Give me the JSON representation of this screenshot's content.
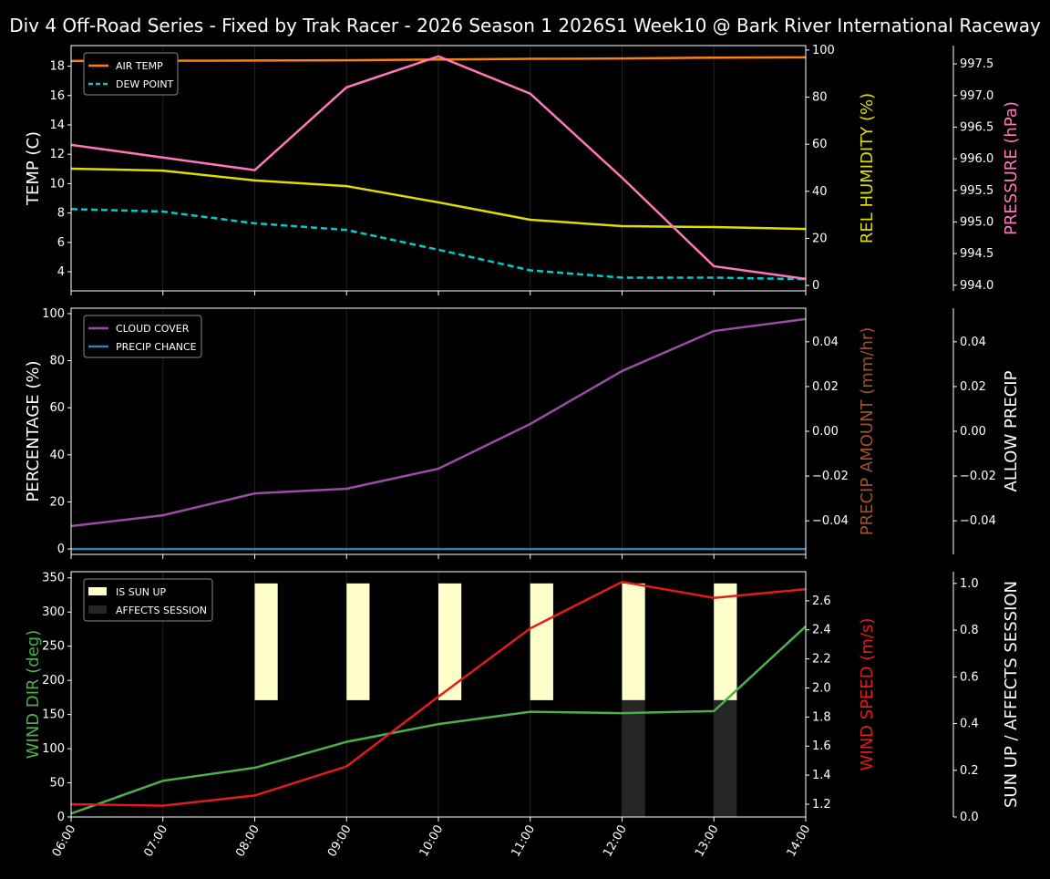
{
  "title": "Div 4 Off-Road Series - Fixed by Trak Racer - 2026 Season 1 2026S1 Week10 @ Bark River International Raceway",
  "chart_data": [
    {
      "type": "line",
      "x": [
        "06:00",
        "07:00",
        "08:00",
        "09:00",
        "10:00",
        "11:00",
        "12:00",
        "13:00",
        "14:00"
      ],
      "legend_placement": "upper-left",
      "axes": [
        {
          "label": "TEMP (C)",
          "side": "left",
          "ylim": [
            2.7,
            19.4
          ],
          "ticks": [
            4,
            6,
            8,
            10,
            12,
            14,
            16,
            18
          ],
          "color": "#ffffff"
        },
        {
          "label": "REL HUMIDITY (%)",
          "side": "right",
          "ylim": [
            -2.3,
            101.9
          ],
          "ticks": [
            0,
            20,
            40,
            60,
            80,
            100
          ],
          "color": "#dddd00"
        },
        {
          "label": "PRESSURE (hPa)",
          "side": "far-right",
          "ylim": [
            993.91,
            997.79
          ],
          "ticks": [
            "994.0",
            "994.5",
            "995.0",
            "995.5",
            "996.0",
            "996.5",
            "997.0",
            "997.5"
          ],
          "color": "#ff77bb"
        }
      ],
      "series": [
        {
          "name": "AIR TEMP",
          "axis": 0,
          "color": "#ff7f0e",
          "dash": false,
          "values": [
            18.35,
            18.37,
            18.38,
            18.4,
            18.45,
            18.5,
            18.52,
            18.58,
            18.6
          ]
        },
        {
          "name": "DEW POINT",
          "axis": 0,
          "color": "#00cccc",
          "dash": true,
          "values": [
            8.27,
            8.1,
            7.3,
            6.85,
            5.5,
            4.1,
            3.6,
            3.6,
            3.5
          ]
        },
        {
          "axis": 1,
          "color": "#dddd00",
          "dash": false,
          "values": [
            49.6,
            48.8,
            44.6,
            42.2,
            35.3,
            27.9,
            25.2,
            24.8,
            24.0
          ]
        },
        {
          "axis": 2,
          "color": "#ff77bb",
          "dash": false,
          "values": [
            996.22,
            996.02,
            995.82,
            997.13,
            997.62,
            997.03,
            995.7,
            994.3,
            994.1
          ]
        }
      ]
    },
    {
      "type": "line",
      "x": [
        "06:00",
        "07:00",
        "08:00",
        "09:00",
        "10:00",
        "11:00",
        "12:00",
        "13:00",
        "14:00"
      ],
      "legend_placement": "upper-left",
      "axes": [
        {
          "label": "PERCENTAGE (%)",
          "side": "left",
          "ylim": [
            -2.3,
            102.3
          ],
          "ticks": [
            0,
            20,
            40,
            60,
            80,
            100
          ],
          "color": "#ffffff"
        },
        {
          "label": "PRECIP AMOUNT (mm/hr)",
          "side": "right",
          "ylim": [
            -0.055,
            0.055
          ],
          "ticks": [
            "−0.04",
            "−0.02",
            "0.00",
            "0.02",
            "0.04"
          ],
          "color": "#a0522d"
        },
        {
          "label": "ALLOW PRECIP",
          "side": "far-right",
          "ylim": [
            -0.055,
            0.055
          ],
          "ticks": [
            "−0.04",
            "−0.02",
            "0.00",
            "0.02",
            "0.04"
          ],
          "color": "#ffffff"
        }
      ],
      "series": [
        {
          "name": "CLOUD COVER",
          "axis": 0,
          "color": "#984ea3",
          "dash": false,
          "values": [
            9.7,
            14.3,
            23.6,
            25.6,
            34.1,
            53.1,
            75.6,
            92.6,
            97.7
          ]
        },
        {
          "name": "PRECIP CHANCE",
          "axis": 0,
          "color": "#377eb8",
          "dash": false,
          "values": [
            0,
            0,
            0,
            0,
            0,
            0,
            0,
            0,
            0
          ]
        }
      ]
    },
    {
      "type": "line",
      "x": [
        "06:00",
        "07:00",
        "08:00",
        "09:00",
        "10:00",
        "11:00",
        "12:00",
        "13:00",
        "14:00"
      ],
      "legend_placement": "upper-left",
      "axes": [
        {
          "label": "WIND DIR (deg)",
          "side": "left",
          "ylim": [
            0,
            359
          ],
          "ticks": [
            0,
            50,
            100,
            150,
            200,
            250,
            300,
            350
          ],
          "color": "#4daf4a"
        },
        {
          "label": "WIND SPEED (m/s)",
          "side": "right",
          "ylim": [
            1.112,
            2.8
          ],
          "ticks": [
            "1.2",
            "1.4",
            "1.6",
            "1.8",
            "2.0",
            "2.2",
            "2.4",
            "2.6"
          ],
          "color": "#e41a1c"
        },
        {
          "label": "SUN UP / AFFECTS SESSION",
          "side": "far-right",
          "ylim": [
            0,
            1.05
          ],
          "ticks": [
            "0.0",
            "0.2",
            "0.4",
            "0.6",
            "0.8",
            "1.0"
          ],
          "color": "#ffffff"
        }
      ],
      "series": [
        {
          "axis": 0,
          "color": "#4daf4a",
          "dash": false,
          "values": [
            5,
            53,
            72,
            110,
            136,
            154,
            152,
            155,
            279
          ]
        },
        {
          "axis": 1,
          "color": "#e41a1c",
          "dash": false,
          "values": [
            1.2,
            1.19,
            1.26,
            1.46,
            1.94,
            2.41,
            2.73,
            2.62,
            2.68
          ]
        }
      ],
      "bars": [
        {
          "name": "IS SUN UP",
          "color": "#ffffcc",
          "values": [
            0,
            0,
            1,
            1,
            1,
            1,
            1,
            1,
            0
          ]
        },
        {
          "name": "AFFECTS SESSION",
          "color": "#262626",
          "values": [
            0,
            0,
            0,
            0,
            0,
            0,
            1,
            1,
            0
          ]
        }
      ]
    }
  ]
}
